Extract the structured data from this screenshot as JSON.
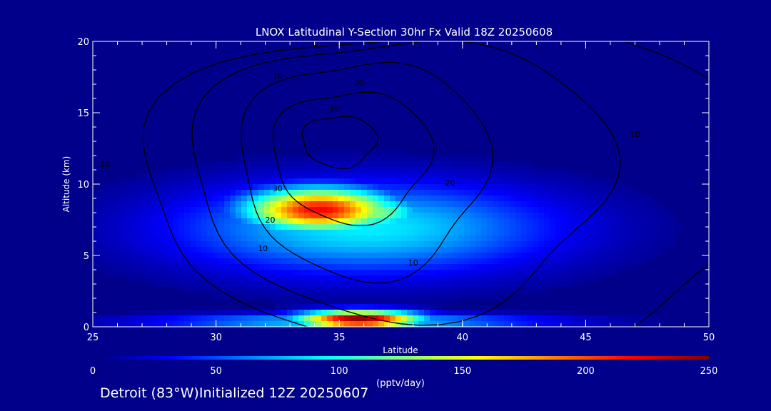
{
  "chart_data": {
    "type": "heatmap",
    "title": "LNOX Latitudinal Y-Section 30hr  Fx Valid 18Z 20250608",
    "xlabel": "Latitude",
    "ylabel": "Altitude (km)",
    "xlim": [
      25,
      50
    ],
    "ylim": [
      0,
      20
    ],
    "x_ticks": [
      "25",
      "30",
      "35",
      "40",
      "45",
      "50"
    ],
    "y_ticks": [
      "0",
      "5",
      "10",
      "15",
      "20"
    ],
    "colorbar": {
      "label": "(pptv/day)",
      "range": [
        0,
        250
      ],
      "ticks": [
        "0",
        "50",
        "100",
        "150",
        "200",
        "250"
      ],
      "colormap": "jet"
    },
    "field_blobs": [
      {
        "lat": 34.2,
        "alt": 8.2,
        "lat_sigma": 2.2,
        "alt_sigma": 1.1,
        "peak": 220
      },
      {
        "lat": 36.3,
        "alt": 8.0,
        "lat_sigma": 1.6,
        "alt_sigma": 0.9,
        "peak": 130
      },
      {
        "lat": 36.0,
        "alt": 6.9,
        "lat_sigma": 5.5,
        "alt_sigma": 2.3,
        "peak": 90
      },
      {
        "lat": 35.8,
        "alt": 0.5,
        "lat_sigma": 1.8,
        "alt_sigma": 0.45,
        "peak": 250
      },
      {
        "lat": 35.5,
        "alt": 0.35,
        "lat_sigma": 5.5,
        "alt_sigma": 0.4,
        "peak": 90
      }
    ],
    "contour_labels": [
      "10",
      "20",
      "30",
      "20",
      "10",
      "10",
      "30",
      "20",
      "10",
      "10"
    ]
  },
  "footer_text": "Detroit (83°W)Initialized 12Z 20250607"
}
